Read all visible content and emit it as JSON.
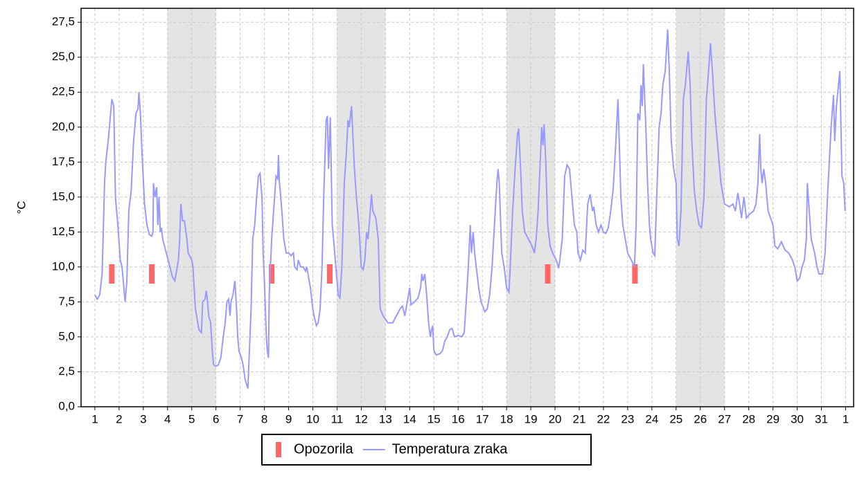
{
  "chart_data": {
    "type": "line",
    "ylabel": "°C",
    "xlim": [
      0.43,
      32.33
    ],
    "ylim": [
      0,
      28.5
    ],
    "xticks": [
      1,
      2,
      3,
      4,
      5,
      6,
      7,
      8,
      9,
      10,
      11,
      12,
      13,
      14,
      15,
      16,
      17,
      18,
      19,
      20,
      21,
      22,
      23,
      24,
      25,
      26,
      27,
      28,
      29,
      30,
      31,
      {
        "value": 32,
        "label": "1"
      }
    ],
    "yticks": [
      {
        "value": 0,
        "label": "0,0"
      },
      {
        "value": 2.5,
        "label": "2,5"
      },
      {
        "value": 5,
        "label": "5,0"
      },
      {
        "value": 7.5,
        "label": "7,5"
      },
      {
        "value": 10,
        "label": "10,0"
      },
      {
        "value": 12.5,
        "label": "12,5"
      },
      {
        "value": 15,
        "label": "15,0"
      },
      {
        "value": 17.5,
        "label": "17,5"
      },
      {
        "value": 20,
        "label": "20,0"
      },
      {
        "value": 22.5,
        "label": "22,5"
      },
      {
        "value": 25,
        "label": "25,0"
      },
      {
        "value": 27.5,
        "label": "27,5"
      }
    ],
    "grid": true,
    "shaded_x": [
      [
        4,
        6
      ],
      [
        11,
        13
      ],
      [
        18,
        20
      ],
      [
        25,
        27
      ]
    ],
    "shade_color": "#e4e4e4",
    "legend": "bottom",
    "series": [
      {
        "name": "Opozorila",
        "type": "marker",
        "color": "#ff6666",
        "x": [
          1.7,
          3.35,
          8.3,
          10.7,
          19.7,
          23.3
        ],
        "values": [
          9.5,
          9.5,
          9.5,
          9.5,
          9.5,
          9.5
        ]
      },
      {
        "name": "Temperatura zraka",
        "type": "line",
        "color": "#9999ff",
        "x": [
          1.0,
          1.1,
          1.2,
          1.3,
          1.4,
          1.45,
          1.55,
          1.6,
          1.7,
          1.78,
          1.85,
          1.95,
          2.05,
          2.12,
          2.25,
          2.32,
          2.4,
          2.5,
          2.6,
          2.7,
          2.78,
          2.82,
          2.88,
          2.95,
          3.05,
          3.15,
          3.25,
          3.35,
          3.4,
          3.42,
          3.48,
          3.55,
          3.6,
          3.65,
          3.7,
          3.75,
          3.8,
          3.95,
          4.1,
          4.2,
          4.3,
          4.38,
          4.45,
          4.5,
          4.55,
          4.62,
          4.7,
          4.8,
          4.85,
          5.0,
          5.05,
          5.1,
          5.15,
          5.2,
          5.3,
          5.4,
          5.45,
          5.55,
          5.6,
          5.65,
          5.7,
          5.78,
          5.85,
          5.9,
          6.0,
          6.1,
          6.2,
          6.3,
          6.38,
          6.45,
          6.52,
          6.58,
          6.62,
          6.7,
          6.78,
          6.85,
          6.9,
          6.95,
          7.05,
          7.12,
          7.2,
          7.28,
          7.32,
          7.38,
          7.45,
          7.52,
          7.6,
          7.68,
          7.75,
          7.82,
          7.9,
          7.95,
          8.0,
          8.08,
          8.12,
          8.17,
          8.2,
          8.25,
          8.3,
          8.38,
          8.48,
          8.55,
          8.58,
          8.62,
          8.65,
          8.72,
          8.8,
          8.9,
          9.0,
          9.1,
          9.2,
          9.25,
          9.35,
          9.4,
          9.5,
          9.6,
          9.7,
          9.75,
          9.8,
          9.9,
          10.0,
          10.05,
          10.15,
          10.22,
          10.3,
          10.38,
          10.45,
          10.55,
          10.6,
          10.65,
          10.72,
          10.8,
          10.88,
          10.95,
          11.05,
          11.12,
          11.2,
          11.3,
          11.38,
          11.45,
          11.5,
          11.6,
          11.65,
          11.72,
          11.8,
          11.9,
          12.0,
          12.08,
          12.15,
          12.22,
          12.28,
          12.35,
          12.42,
          12.48,
          12.6,
          12.7,
          12.78,
          12.9,
          13.1,
          13.3,
          13.45,
          13.6,
          13.7,
          13.8,
          13.9,
          14.0,
          14.05,
          14.2,
          14.35,
          14.45,
          14.5,
          14.55,
          14.62,
          14.7,
          14.78,
          14.85,
          14.9,
          14.95,
          15.0,
          15.1,
          15.25,
          15.35,
          15.45,
          15.55,
          15.65,
          15.75,
          15.85,
          16.0,
          16.15,
          16.25,
          16.35,
          16.42,
          16.5,
          16.55,
          16.62,
          16.68,
          16.75,
          16.85,
          16.95,
          17.1,
          17.2,
          17.3,
          17.4,
          17.5,
          17.6,
          17.65,
          17.7,
          17.8,
          17.9,
          18.0,
          18.1,
          18.15,
          18.25,
          18.35,
          18.45,
          18.5,
          18.58,
          18.65,
          18.75,
          18.9,
          19.05,
          19.15,
          19.22,
          19.3,
          19.4,
          19.45,
          19.5,
          19.55,
          19.62,
          19.7,
          19.8,
          19.9,
          20.05,
          20.15,
          20.2,
          20.3,
          20.4,
          20.5,
          20.6,
          20.7,
          20.8,
          20.9,
          20.95,
          21.05,
          21.15,
          21.25,
          21.35,
          21.45,
          21.55,
          21.6,
          21.7,
          21.8,
          21.9,
          22.0,
          22.1,
          22.2,
          22.3,
          22.4,
          22.5,
          22.6,
          22.65,
          22.72,
          22.8,
          22.9,
          23.0,
          23.15,
          23.28,
          23.35,
          23.42,
          23.5,
          23.55,
          23.6,
          23.65,
          23.75,
          23.82,
          23.9,
          23.95,
          24.05,
          24.12,
          24.2,
          24.3,
          24.38,
          24.45,
          24.55,
          24.65,
          24.72,
          24.8,
          24.9,
          25.0,
          25.05,
          25.12,
          25.2,
          25.3,
          25.38,
          25.5,
          25.58,
          25.65,
          25.75,
          25.85,
          25.95,
          26.05,
          26.15,
          26.25,
          26.32,
          26.42,
          26.5,
          26.6,
          26.7,
          26.85,
          27.0,
          27.2,
          27.35,
          27.45,
          27.55,
          27.62,
          27.7,
          27.8,
          27.9,
          28.05,
          28.2,
          28.3,
          28.38,
          28.45,
          28.5,
          28.55,
          28.62,
          28.7,
          28.8,
          28.9,
          29.0,
          29.08,
          29.2,
          29.35,
          29.5,
          29.65,
          29.8,
          29.9,
          30.0,
          30.1,
          30.2,
          30.3,
          30.38,
          30.42,
          30.5,
          30.58,
          30.72,
          30.82,
          30.9,
          31.05,
          31.15,
          31.25,
          31.4,
          31.5,
          31.55,
          31.62,
          31.76,
          31.85,
          31.92,
          31.98
        ],
        "values": [
          8.0,
          7.7,
          8,
          9.5,
          16,
          17.5,
          19,
          20,
          22,
          21.5,
          15,
          13,
          10.5,
          10,
          7.5,
          9,
          14,
          15.5,
          19,
          21,
          21.3,
          22.5,
          21,
          18,
          14.5,
          13,
          12.3,
          12.2,
          12.5,
          16,
          15,
          15.7,
          13,
          15,
          12.5,
          12.8,
          12,
          11,
          10,
          9.3,
          9,
          9.8,
          10.5,
          12,
          14.5,
          13.3,
          13.3,
          12,
          11,
          10.5,
          10,
          8.5,
          7,
          6.5,
          5.5,
          5.3,
          7.5,
          7.7,
          8.3,
          7.5,
          6.5,
          6,
          4,
          3,
          2.9,
          3,
          3.5,
          5,
          6,
          7.5,
          7.7,
          6.5,
          7.5,
          8,
          9,
          7,
          5,
          4,
          3.5,
          3,
          2,
          1.5,
          1.3,
          4,
          7,
          12,
          13,
          15,
          16.5,
          16.7,
          15,
          11,
          9,
          5,
          4,
          3.5,
          8,
          10,
          12,
          14,
          16.5,
          16.3,
          18,
          16,
          15.5,
          14,
          12,
          11,
          11,
          10.8,
          11,
          10,
          9.8,
          10.5,
          10,
          10,
          9.7,
          10,
          9.5,
          8.5,
          7,
          6.5,
          5.8,
          6,
          7,
          10,
          15,
          20.5,
          20.8,
          17,
          20.7,
          13,
          11.5,
          10,
          8,
          7.8,
          10,
          16,
          18,
          20.5,
          20,
          21.5,
          19.5,
          17,
          15,
          13,
          10,
          9.8,
          10.5,
          12.5,
          12,
          13.5,
          15.2,
          14,
          13.5,
          12,
          7,
          6.5,
          6,
          6,
          6.5,
          7,
          7.2,
          6.5,
          7.5,
          8.5,
          7.3,
          7.5,
          7.8,
          8.5,
          9.5,
          9,
          9.5,
          8,
          6,
          5,
          5.5,
          5.8,
          4,
          3.7,
          3.8,
          4,
          4.7,
          5,
          5.5,
          5.6,
          5,
          5.1,
          5,
          5.3,
          8,
          10,
          13,
          11,
          12.5,
          11,
          10,
          8.5,
          7.5,
          6.8,
          7,
          8,
          10,
          13,
          16,
          17,
          16,
          11,
          10,
          8.5,
          8.2,
          10,
          14,
          17,
          19.5,
          19.9,
          17,
          14,
          12.5,
          12,
          11.5,
          11,
          12,
          14,
          18,
          20,
          18.7,
          20.2,
          17.5,
          13,
          11.5,
          11,
          10.5,
          9.9,
          10.5,
          12,
          16.5,
          17.3,
          17,
          15,
          13,
          12.5,
          11,
          10.5,
          11.2,
          11,
          14.5,
          15.2,
          14,
          14.3,
          13,
          12.5,
          13,
          12.5,
          12.4,
          12.8,
          14,
          15.5,
          18.5,
          22,
          19,
          15,
          13,
          12,
          11,
          10.5,
          10,
          13,
          21,
          20.5,
          23,
          21.5,
          24.5,
          20,
          16,
          13,
          12,
          11,
          10.8,
          15,
          20,
          21,
          23,
          24,
          27,
          24,
          19,
          17,
          16,
          12,
          11.5,
          14,
          22,
          23,
          25.4,
          23,
          19,
          15.5,
          14,
          13,
          12.8,
          15,
          22,
          23.5,
          26,
          24,
          21,
          19,
          16,
          14.5,
          14.3,
          14.5,
          14,
          15.3,
          14.5,
          13.5,
          15,
          13.5,
          13.8,
          14,
          14.5,
          16,
          19.5,
          17,
          16,
          17,
          16,
          14,
          13.5,
          13,
          11.5,
          11.3,
          11.8,
          11.2,
          11,
          10.5,
          10,
          9,
          9.2,
          10,
          10.5,
          12,
          16,
          14,
          12,
          11,
          10,
          9.5,
          9.5,
          11,
          15,
          20,
          22.3,
          19,
          21.5,
          24,
          16.5,
          16,
          14
        ]
      }
    ]
  }
}
